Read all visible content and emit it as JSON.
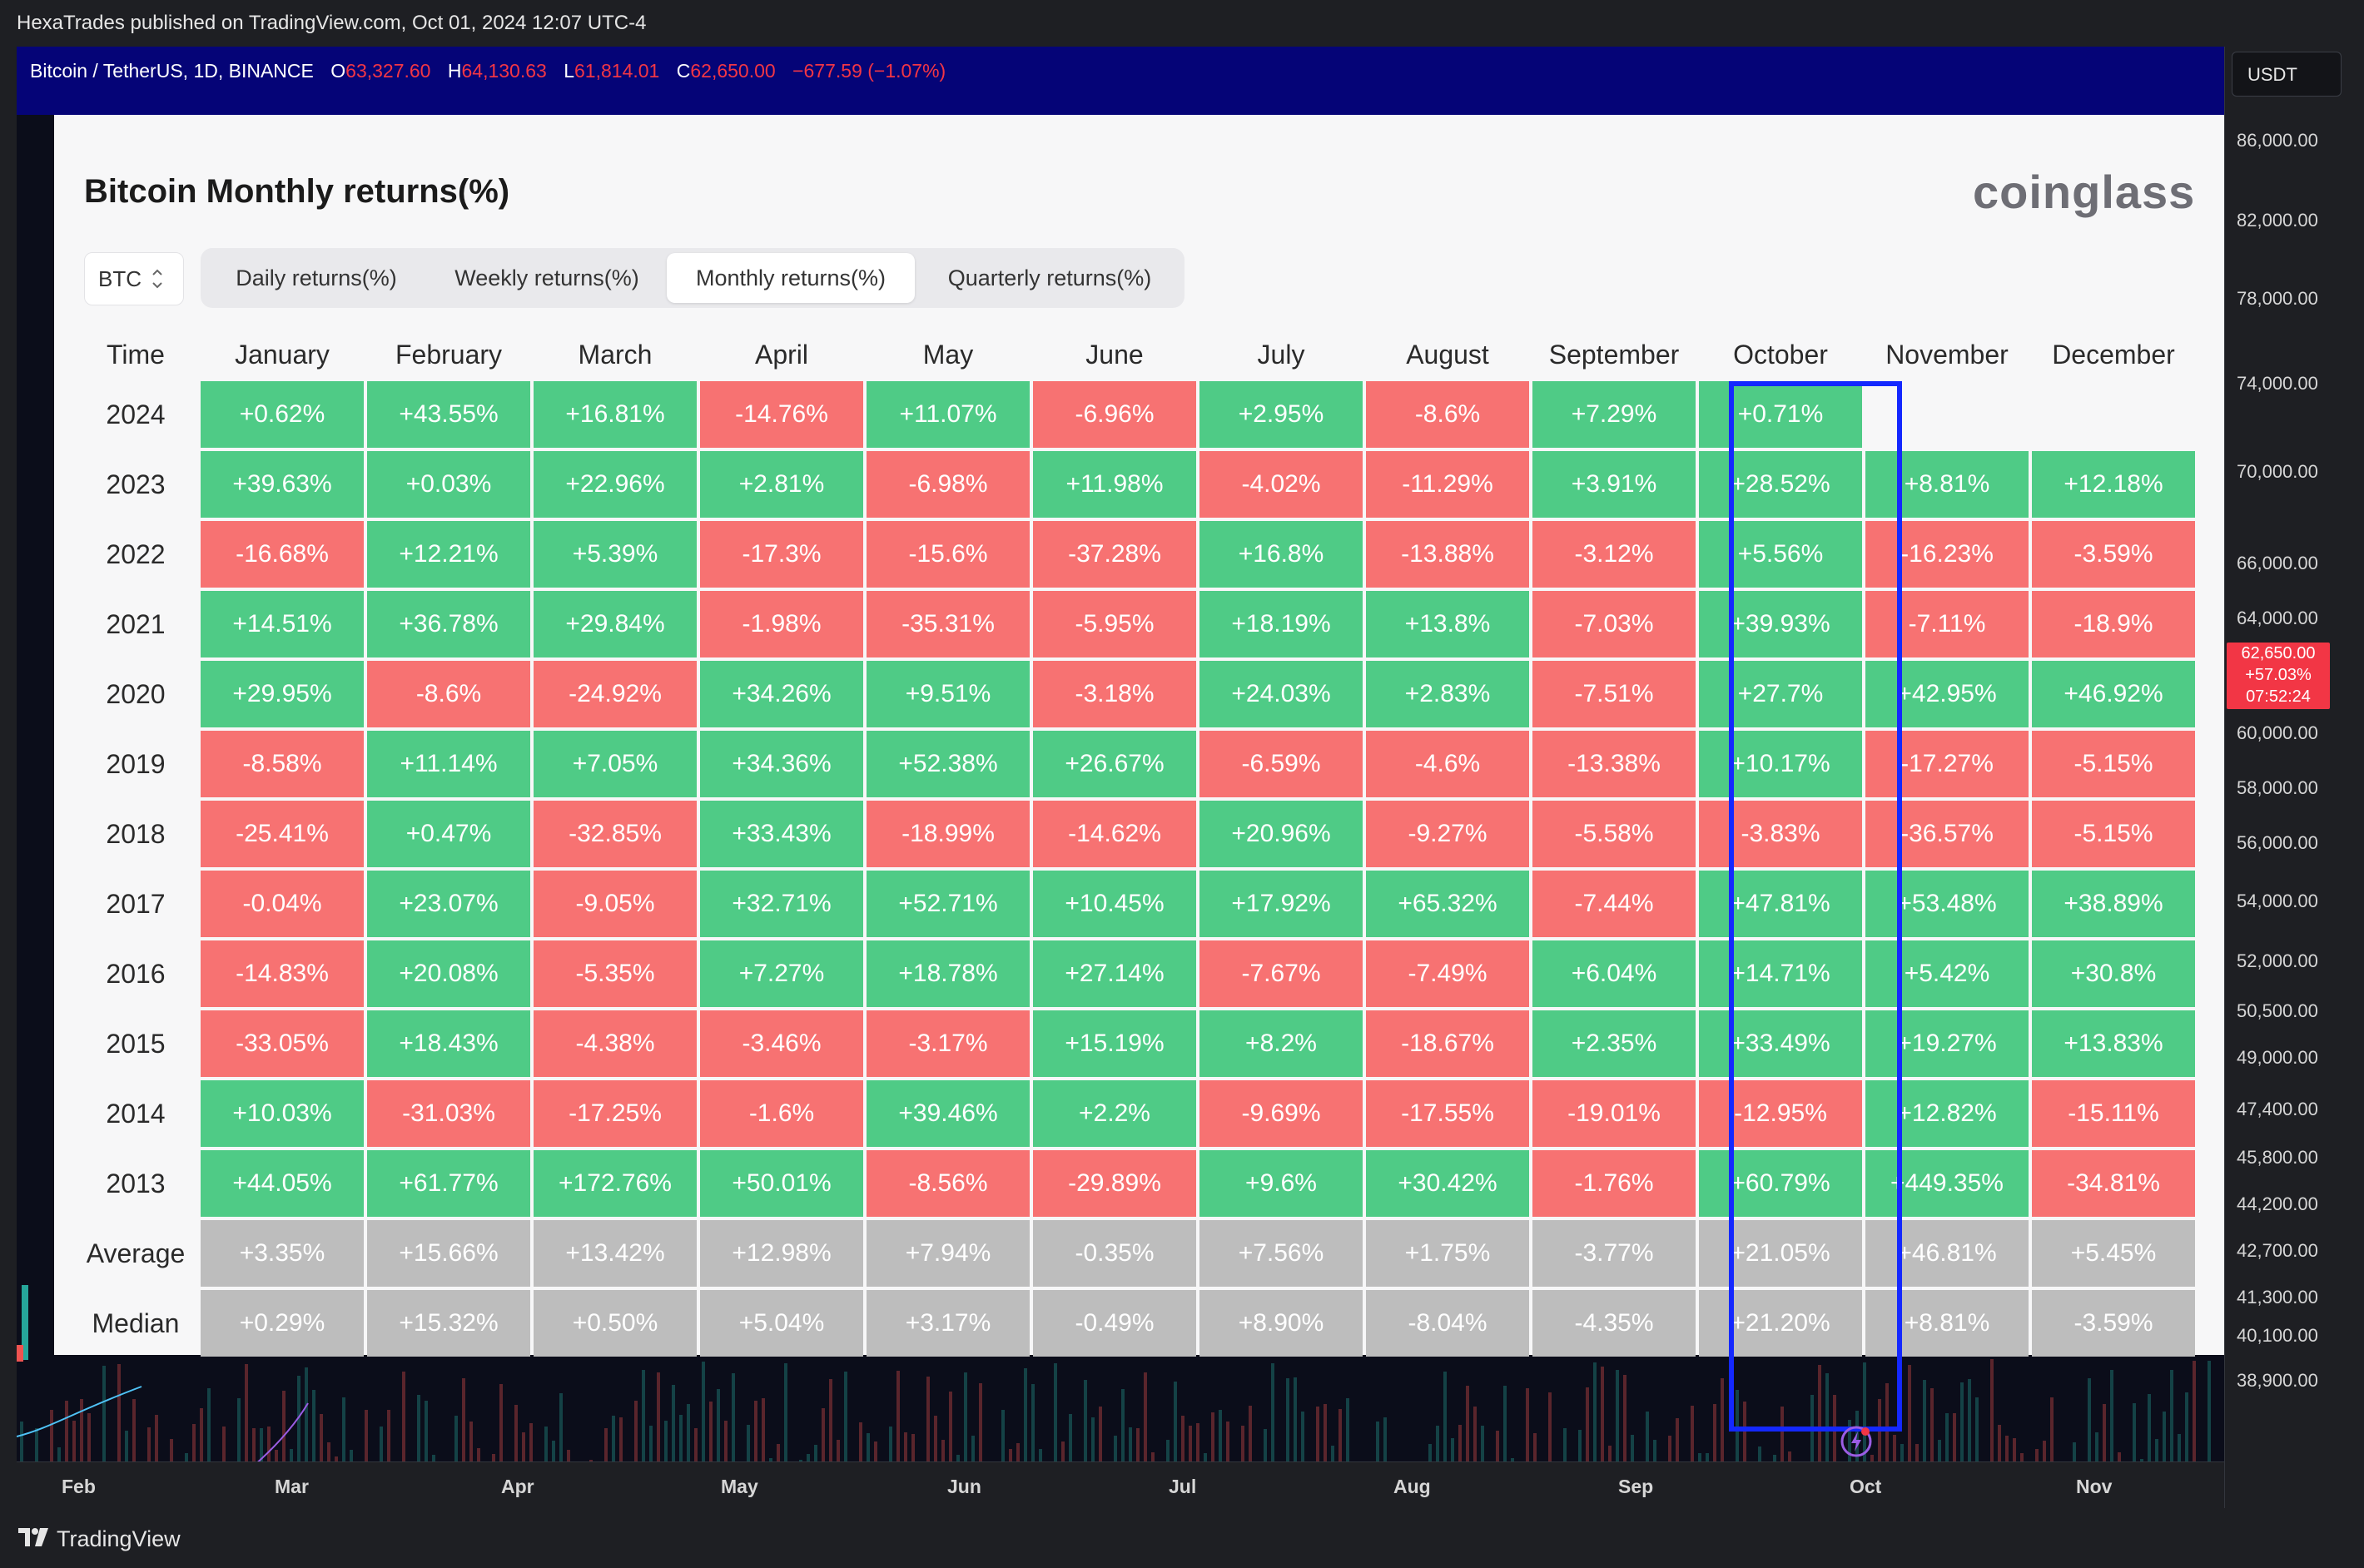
{
  "publisher_line": "HexaTrades published on TradingView.com, Oct 01, 2024 12:07 UTC-4",
  "symbol": {
    "name": "Bitcoin / TetherUS, 1D, BINANCE",
    "o_label": "O",
    "o_value": "63,327.60",
    "h_label": "H",
    "h_value": "64,130.63",
    "l_label": "L",
    "l_value": "61,814.01",
    "c_label": "C",
    "c_value": "62,650.00",
    "change": "−677.59 (−1.07%)"
  },
  "panel": {
    "title": "Bitcoin Monthly returns(%)",
    "brand": "coinglass",
    "asset": "BTC",
    "tabs": [
      "Daily returns(%)",
      "Weekly returns(%)",
      "Monthly returns(%)",
      "Quarterly returns(%)"
    ],
    "active_tab": "Monthly returns(%)",
    "time_header": "Time",
    "months": [
      "January",
      "February",
      "March",
      "April",
      "May",
      "June",
      "July",
      "August",
      "September",
      "October",
      "November",
      "December"
    ],
    "highlighted_month": "October",
    "rows": [
      {
        "label": "2024",
        "values": [
          "+0.62%",
          "+43.55%",
          "+16.81%",
          "-14.76%",
          "+11.07%",
          "-6.96%",
          "+2.95%",
          "-8.6%",
          "+7.29%",
          "+0.71%",
          "",
          ""
        ]
      },
      {
        "label": "2023",
        "values": [
          "+39.63%",
          "+0.03%",
          "+22.96%",
          "+2.81%",
          "-6.98%",
          "+11.98%",
          "-4.02%",
          "-11.29%",
          "+3.91%",
          "+28.52%",
          "+8.81%",
          "+12.18%"
        ]
      },
      {
        "label": "2022",
        "values": [
          "-16.68%",
          "+12.21%",
          "+5.39%",
          "-17.3%",
          "-15.6%",
          "-37.28%",
          "+16.8%",
          "-13.88%",
          "-3.12%",
          "+5.56%",
          "-16.23%",
          "-3.59%"
        ]
      },
      {
        "label": "2021",
        "values": [
          "+14.51%",
          "+36.78%",
          "+29.84%",
          "-1.98%",
          "-35.31%",
          "-5.95%",
          "+18.19%",
          "+13.8%",
          "-7.03%",
          "+39.93%",
          "-7.11%",
          "-18.9%"
        ]
      },
      {
        "label": "2020",
        "values": [
          "+29.95%",
          "-8.6%",
          "-24.92%",
          "+34.26%",
          "+9.51%",
          "-3.18%",
          "+24.03%",
          "+2.83%",
          "-7.51%",
          "+27.7%",
          "+42.95%",
          "+46.92%"
        ]
      },
      {
        "label": "2019",
        "values": [
          "-8.58%",
          "+11.14%",
          "+7.05%",
          "+34.36%",
          "+52.38%",
          "+26.67%",
          "-6.59%",
          "-4.6%",
          "-13.38%",
          "+10.17%",
          "-17.27%",
          "-5.15%"
        ]
      },
      {
        "label": "2018",
        "values": [
          "-25.41%",
          "+0.47%",
          "-32.85%",
          "+33.43%",
          "-18.99%",
          "-14.62%",
          "+20.96%",
          "-9.27%",
          "-5.58%",
          "-3.83%",
          "-36.57%",
          "-5.15%"
        ]
      },
      {
        "label": "2017",
        "values": [
          "-0.04%",
          "+23.07%",
          "-9.05%",
          "+32.71%",
          "+52.71%",
          "+10.45%",
          "+17.92%",
          "+65.32%",
          "-7.44%",
          "+47.81%",
          "+53.48%",
          "+38.89%"
        ]
      },
      {
        "label": "2016",
        "values": [
          "-14.83%",
          "+20.08%",
          "-5.35%",
          "+7.27%",
          "+18.78%",
          "+27.14%",
          "-7.67%",
          "-7.49%",
          "+6.04%",
          "+14.71%",
          "+5.42%",
          "+30.8%"
        ]
      },
      {
        "label": "2015",
        "values": [
          "-33.05%",
          "+18.43%",
          "-4.38%",
          "-3.46%",
          "-3.17%",
          "+15.19%",
          "+8.2%",
          "-18.67%",
          "+2.35%",
          "+33.49%",
          "+19.27%",
          "+13.83%"
        ]
      },
      {
        "label": "2014",
        "values": [
          "+10.03%",
          "-31.03%",
          "-17.25%",
          "-1.6%",
          "+39.46%",
          "+2.2%",
          "-9.69%",
          "-17.55%",
          "-19.01%",
          "-12.95%",
          "+12.82%",
          "-15.11%"
        ]
      },
      {
        "label": "2013",
        "values": [
          "+44.05%",
          "+61.77%",
          "+172.76%",
          "+50.01%",
          "-8.56%",
          "-29.89%",
          "+9.6%",
          "+30.42%",
          "-1.76%",
          "+60.79%",
          "+449.35%",
          "-34.81%"
        ]
      },
      {
        "label": "Average",
        "values": [
          "+3.35%",
          "+15.66%",
          "+13.42%",
          "+12.98%",
          "+7.94%",
          "-0.35%",
          "+7.56%",
          "+1.75%",
          "-3.77%",
          "+21.05%",
          "+46.81%",
          "+5.45%"
        ],
        "stat": true
      },
      {
        "label": "Median",
        "values": [
          "+0.29%",
          "+15.32%",
          "+0.50%",
          "+5.04%",
          "+3.17%",
          "-0.49%",
          "+8.90%",
          "-8.04%",
          "-4.35%",
          "+21.20%",
          "+8.81%",
          "-3.59%"
        ],
        "stat": true
      }
    ]
  },
  "price_axis": {
    "currency": "USDT",
    "ticks": [
      "86,000.00",
      "82,000.00",
      "78,000.00",
      "74,000.00",
      "70,000.00",
      "66,000.00",
      "64,000.00",
      "60,000.00",
      "58,000.00",
      "56,000.00",
      "54,000.00",
      "52,000.00",
      "50,500.00",
      "49,000.00",
      "47,400.00",
      "45,800.00",
      "44,200.00",
      "42,700.00",
      "41,300.00",
      "40,100.00",
      "38,900.00"
    ],
    "current_price": "62,650.00",
    "current_change": "+57.03%",
    "countdown": "07:52:24"
  },
  "time_axis": [
    "Feb",
    "Mar",
    "Apr",
    "May",
    "Jun",
    "Jul",
    "Aug",
    "Sep",
    "Oct",
    "Nov"
  ],
  "footer": {
    "brand": "TradingView"
  },
  "colors": {
    "positive": "#4fcb86",
    "negative": "#f77272",
    "stat": "#bdbdbd",
    "highlight": "#1428ff",
    "header_bg": "#050477",
    "price_tag": "#f23645"
  },
  "icons": [
    "chevron-updown-icon",
    "tradingview-logo-icon",
    "replay-icon"
  ]
}
